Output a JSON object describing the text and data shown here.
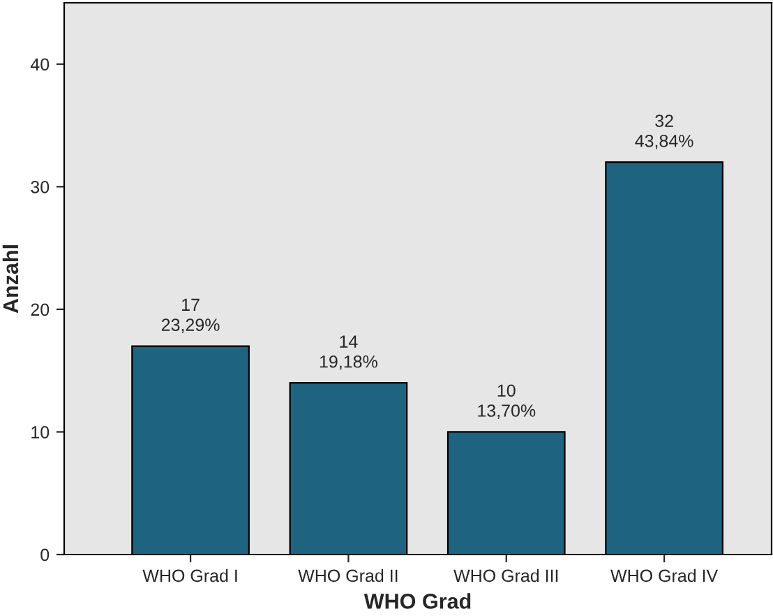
{
  "chart_data": {
    "type": "bar",
    "xlabel": "WHO Grad",
    "ylabel": "Anzahl",
    "categories": [
      "WHO Grad I",
      "WHO Grad II",
      "WHO Grad III",
      "WHO Grad IV"
    ],
    "values": [
      17,
      14,
      10,
      32
    ],
    "value_labels": [
      "17\n23,29%",
      "14\n19,18%",
      "10\n13,70%",
      "32\n43,84%"
    ],
    "color": "#1e6480",
    "ylim": [
      0,
      45
    ],
    "yticks": [
      0,
      10,
      20,
      30,
      40
    ],
    "grid": false
  }
}
